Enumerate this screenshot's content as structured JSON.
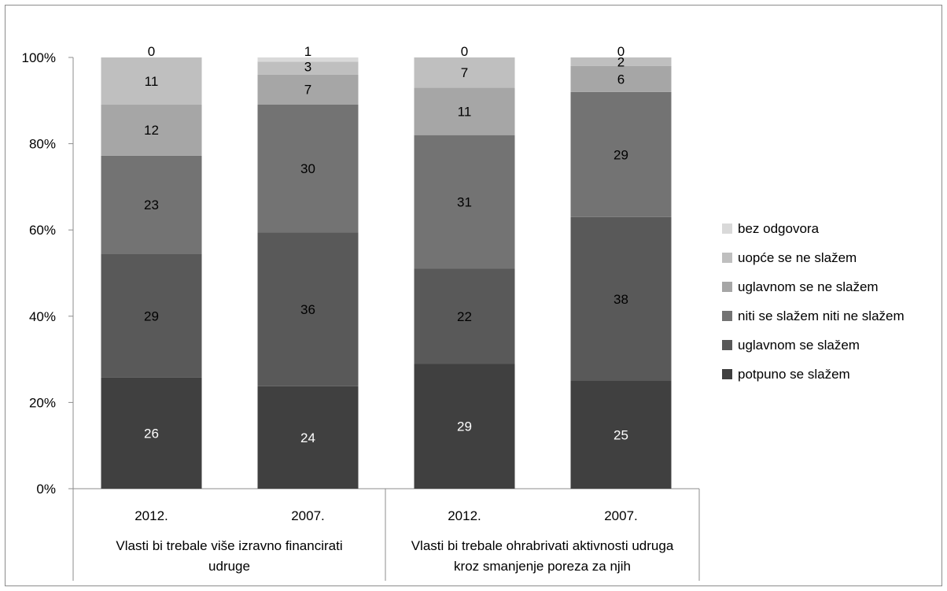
{
  "chart_data": {
    "type": "bar",
    "stacked": true,
    "percent_stacked": true,
    "title": "",
    "xlabel": "",
    "ylabel": "",
    "ylim": [
      0,
      100
    ],
    "y_ticks": [
      "0%",
      "20%",
      "40%",
      "60%",
      "80%",
      "100%"
    ],
    "grid": false,
    "legend_position": "right",
    "groups": [
      {
        "label": "Vlasti bi trebale više izravno financirati udruge",
        "categories": [
          "2012.",
          "2007."
        ]
      },
      {
        "label": "Vlasti bi trebale ohrabrivati aktivnosti udruga kroz smanjenje poreza za njih",
        "categories": [
          "2012.",
          "2007."
        ]
      }
    ],
    "categories": [
      "2012.",
      "2007.",
      "2012.",
      "2007."
    ],
    "series": [
      {
        "name": "potpuno se slažem",
        "color": "#404040",
        "label_color": "#ffffff",
        "values": [
          26,
          24,
          29,
          25
        ]
      },
      {
        "name": "uglavnom se slažem",
        "color": "#595959",
        "label_color": "#000000",
        "values": [
          29,
          36,
          22,
          38
        ]
      },
      {
        "name": "niti se slažem niti ne slažem",
        "color": "#737373",
        "label_color": "#000000",
        "values": [
          23,
          30,
          31,
          29
        ]
      },
      {
        "name": "uglavnom se ne slažem",
        "color": "#a6a6a6",
        "label_color": "#000000",
        "values": [
          12,
          7,
          11,
          6
        ]
      },
      {
        "name": "uopće se ne slažem",
        "color": "#bfbfbf",
        "label_color": "#000000",
        "values": [
          11,
          3,
          7,
          2
        ]
      },
      {
        "name": "bez odgovora",
        "color": "#d9d9d9",
        "label_color": "#000000",
        "values": [
          0,
          1,
          0,
          0
        ]
      }
    ]
  }
}
